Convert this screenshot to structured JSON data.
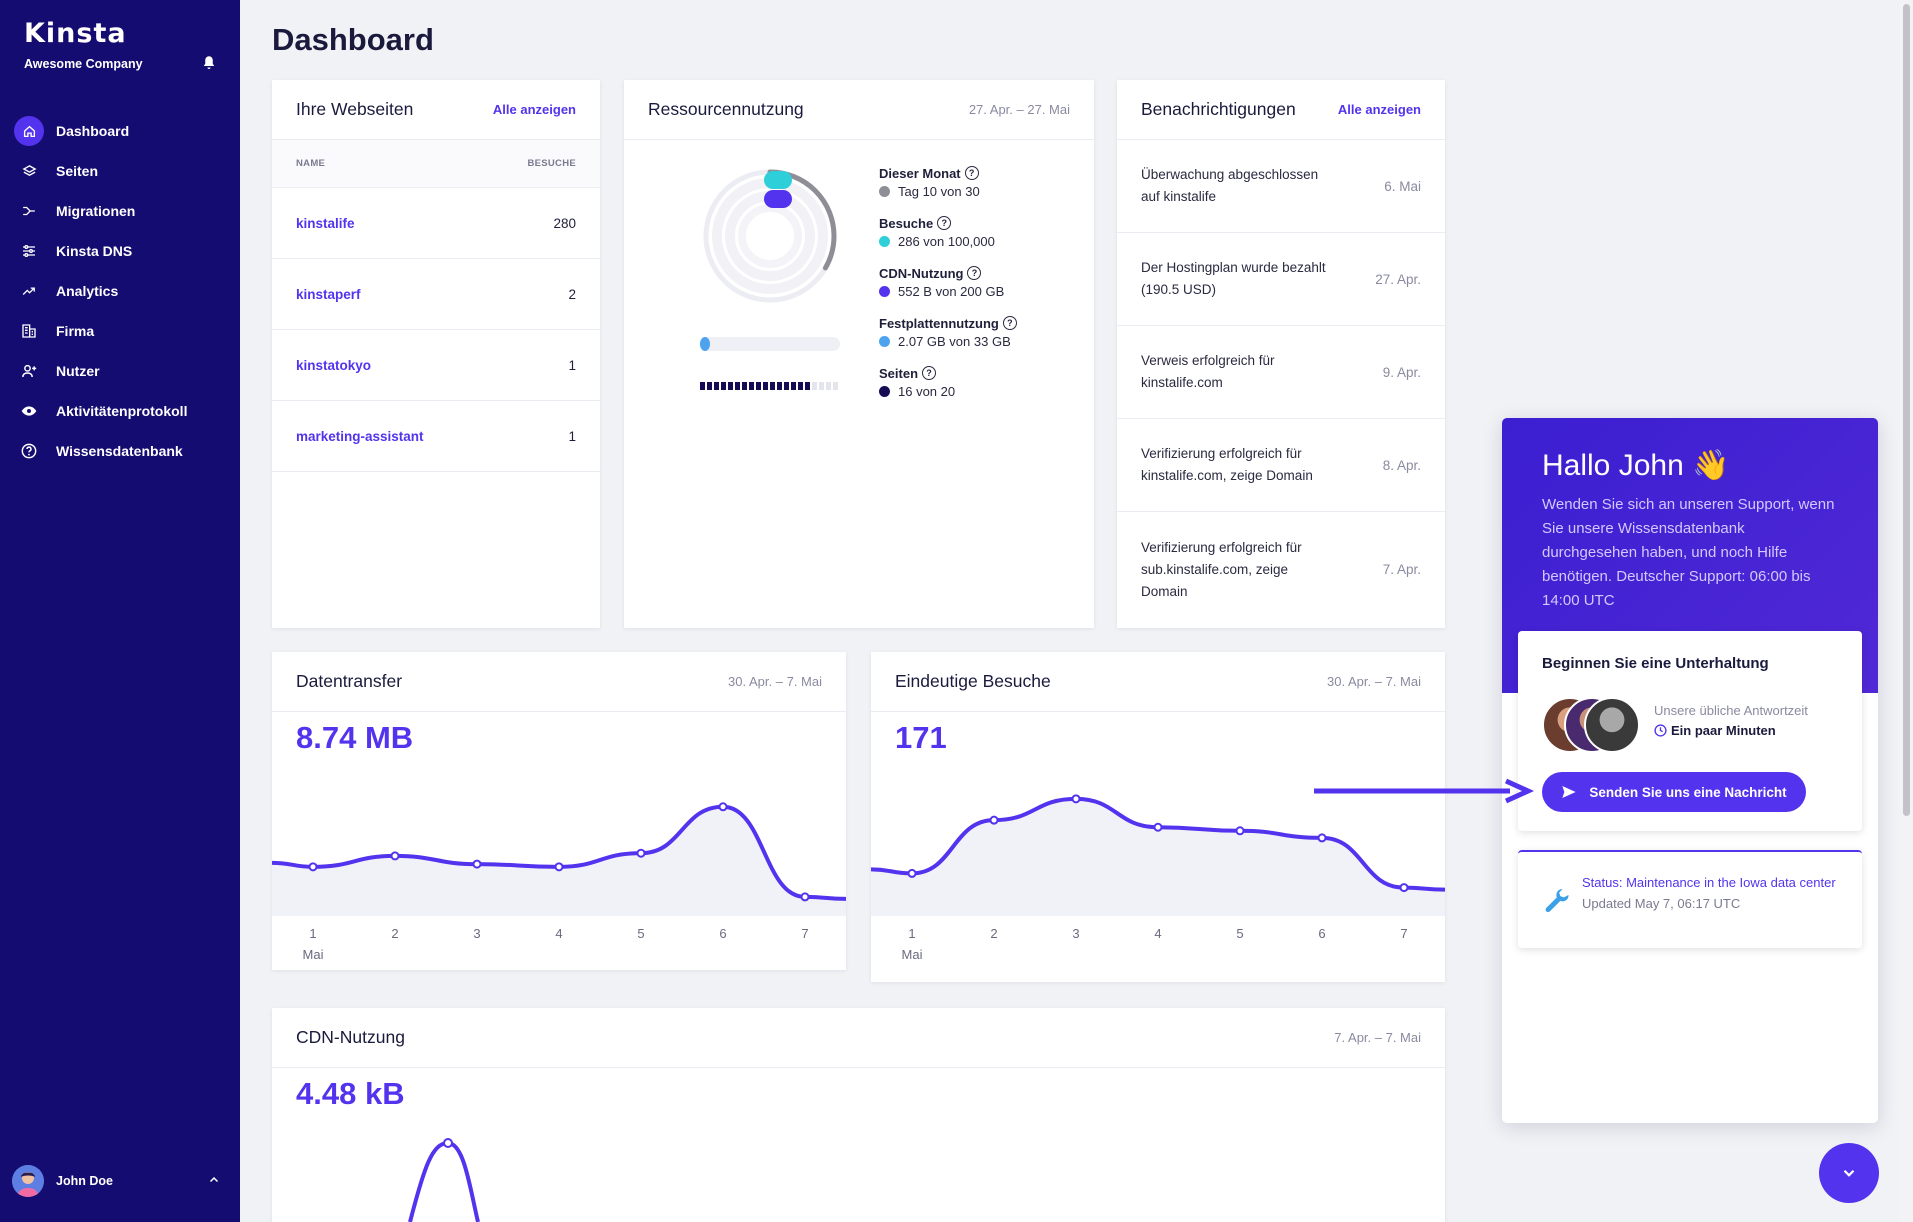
{
  "sidebar": {
    "logo": "Kinsta",
    "company": "Awesome Company",
    "items": [
      {
        "label": "Dashboard",
        "icon": "home-icon"
      },
      {
        "label": "Seiten",
        "icon": "layers-icon"
      },
      {
        "label": "Migrationen",
        "icon": "migration-icon"
      },
      {
        "label": "Kinsta DNS",
        "icon": "dns-icon"
      },
      {
        "label": "Analytics",
        "icon": "analytics-icon"
      },
      {
        "label": "Firma",
        "icon": "building-icon"
      },
      {
        "label": "Nutzer",
        "icon": "user-add-icon"
      },
      {
        "label": "Aktivitätenprotokoll",
        "icon": "eye-icon"
      },
      {
        "label": "Wissensdatenbank",
        "icon": "help-icon"
      }
    ],
    "user": "John Doe"
  },
  "page": {
    "title": "Dashboard"
  },
  "websites": {
    "title": "Ihre Webseiten",
    "link": "Alle anzeigen",
    "col_name": "NAME",
    "col_visits": "BESUCHE",
    "rows": [
      {
        "name": "kinstalife",
        "visits": "280"
      },
      {
        "name": "kinstaperf",
        "visits": "2"
      },
      {
        "name": "kinstatokyo",
        "visits": "1"
      },
      {
        "name": "marketing-assistant",
        "visits": "1"
      }
    ]
  },
  "resources": {
    "title": "Ressourcennutzung",
    "date": "27. Apr. – 27. Mai",
    "items": [
      {
        "label": "Dieser Monat",
        "value": "Tag 10 von 30",
        "color": "#8e8e96"
      },
      {
        "label": "Besuche",
        "value": "286 von 100,000",
        "color": "#2fcfd9"
      },
      {
        "label": "CDN-Nutzung",
        "value": "552 B von 200 GB",
        "color": "#5333ed"
      },
      {
        "label": "Festplattennutzung",
        "value": "2.07 GB von 33 GB",
        "color": "#4ea3ef"
      },
      {
        "label": "Seiten",
        "value": "16 von 20",
        "color": "#150c55"
      }
    ],
    "month_progress": 0.333,
    "disk_progress": 0.063,
    "pages_used": 16,
    "pages_total": 20
  },
  "notifications": {
    "title": "Benachrichtigungen",
    "link": "Alle anzeigen",
    "rows": [
      {
        "text": "Überwachung abgeschlossen auf kinstalife",
        "date": "6. Mai"
      },
      {
        "text": "Der Hostingplan wurde bezahlt (190.5 USD)",
        "date": "27. Apr."
      },
      {
        "text": "Verweis erfolgreich für kinstalife.com",
        "date": "9. Apr."
      },
      {
        "text": "Verifizierung erfolgreich für kinstalife.com, zeige Domain",
        "date": "8. Apr."
      },
      {
        "text": "Verifizierung erfolgreich für sub.kinstalife.com, zeige Domain",
        "date": "7. Apr."
      }
    ]
  },
  "transfer": {
    "title": "Datentransfer",
    "date": "30. Apr. – 7. Mai",
    "value": "8.74 MB",
    "month_label": "Mai"
  },
  "visits": {
    "title": "Eindeutige Besuche",
    "date": "30. Apr. – 7. Mai",
    "value": "171",
    "month_label": "Mai"
  },
  "cdn": {
    "title": "CDN-Nutzung",
    "date": "7. Apr. – 7. Mai",
    "value": "4.48 kB"
  },
  "chart_data": [
    {
      "type": "line",
      "title": "Datentransfer",
      "x": [
        "1",
        "2",
        "3",
        "4",
        "5",
        "6",
        "7"
      ],
      "series": [
        {
          "values": [
            0.9,
            1.1,
            0.95,
            0.9,
            1.15,
            2.0,
            0.35
          ]
        }
      ],
      "ylim": [
        0,
        2.6
      ]
    },
    {
      "type": "line",
      "title": "Eindeutige Besuche",
      "x": [
        "1",
        "2",
        "3",
        "4",
        "5",
        "6",
        "7"
      ],
      "series": [
        {
          "values": [
            12,
            27,
            33,
            25,
            24,
            22,
            8
          ]
        }
      ],
      "ylim": [
        0,
        40
      ]
    }
  ],
  "chat": {
    "greeting": "Hallo John 👋",
    "description": "Wenden Sie sich an unseren Support, wenn Sie unsere Wissensdatenbank durchgesehen haben, und noch Hilfe benötigen. Deutscher Support: 06:00 bis 14:00 UTC",
    "convo_title": "Beginnen Sie eine Unterhaltung",
    "response_label": "Unsere übliche Antwortzeit",
    "response_value": "Ein paar Minuten",
    "send_label": "Senden Sie uns eine Nachricht",
    "status_title": "Status: Maintenance in the Iowa data center",
    "status_updated": "Updated May 7, 06:17 UTC"
  },
  "colors": {
    "accent": "#5333ed",
    "sidebar": "#150c71"
  }
}
